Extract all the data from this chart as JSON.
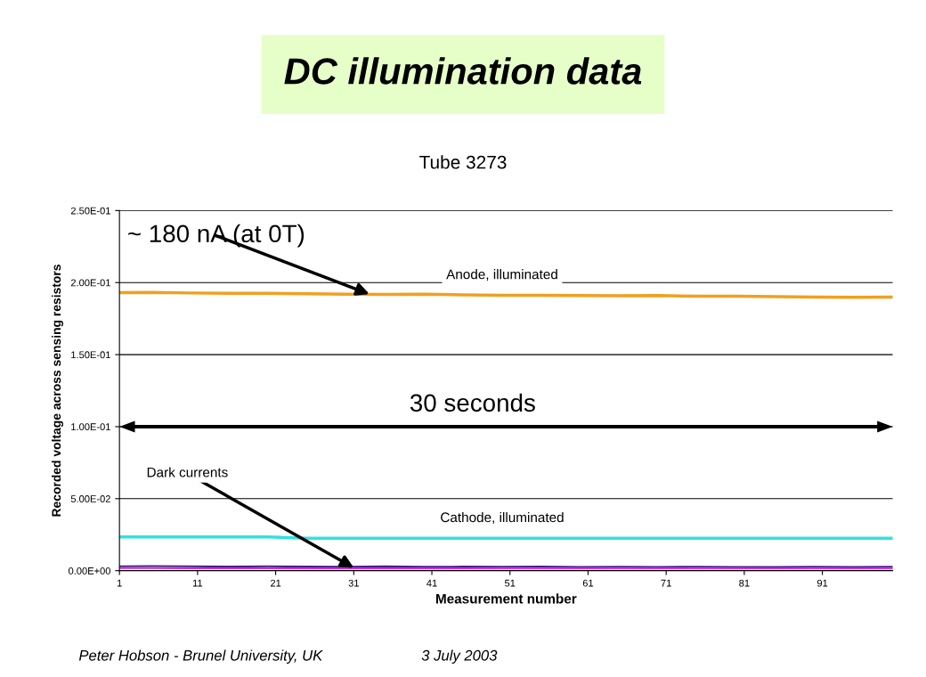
{
  "chart_data": {
    "type": "line",
    "title": "DC illumination data",
    "subtitle": "Tube 3273",
    "xlabel": "Measurement number",
    "ylabel": "Recorded voltage across sensing resistors",
    "x": [
      1,
      5,
      10,
      15,
      20,
      25,
      30,
      35,
      40,
      45,
      50,
      55,
      60,
      65,
      70,
      75,
      80,
      85,
      90,
      95,
      100
    ],
    "series": [
      {
        "name": "Anode, illuminated",
        "color": "#f0a020",
        "values": [
          0.193,
          0.1932,
          0.1928,
          0.1925,
          0.1925,
          0.1922,
          0.192,
          0.1918,
          0.192,
          0.1915,
          0.1912,
          0.1912,
          0.191,
          0.1908,
          0.191,
          0.1905,
          0.1905,
          0.1903,
          0.19,
          0.1898,
          0.19
        ]
      },
      {
        "name": "Cathode, illuminated",
        "color": "#33e0e0",
        "values": [
          0.0235,
          0.0235,
          0.0235,
          0.0235,
          0.0235,
          0.0225,
          0.0225,
          0.0225,
          0.0225,
          0.0225,
          0.0225,
          0.0225,
          0.0225,
          0.0225,
          0.0225,
          0.0225,
          0.0225,
          0.0225,
          0.0225,
          0.0225,
          0.0225
        ]
      },
      {
        "color": "#4b1a8c",
        "values": [
          0.003,
          0.0032,
          0.003,
          0.0028,
          0.003,
          0.0028,
          0.0027,
          0.003,
          0.0027,
          0.0028,
          0.0027,
          0.0028,
          0.0026,
          0.0027,
          0.0026,
          0.0027,
          0.0026,
          0.0025,
          0.0027,
          0.0025,
          0.0027
        ]
      },
      {
        "color": "#cc33cc",
        "values": [
          0.0018,
          0.0018,
          0.0017,
          0.0017,
          0.0017,
          0.0016,
          0.0016,
          0.0016,
          0.0016,
          0.0016,
          0.0015,
          0.0015,
          0.0015,
          0.0015,
          0.0015,
          0.0015,
          0.0015,
          0.0015,
          0.0015,
          0.0015,
          0.0015
        ]
      }
    ],
    "xlim": [
      1,
      100
    ],
    "xticks": [
      1,
      11,
      21,
      31,
      41,
      51,
      61,
      71,
      81,
      91
    ],
    "ylim": [
      0,
      0.25
    ],
    "yticks": [
      {
        "value": 0,
        "label": "0.00E+00"
      },
      {
        "value": 0.05,
        "label": "5.00E-02"
      },
      {
        "value": 0.1,
        "label": "1.00E-01"
      },
      {
        "value": 0.15,
        "label": "1.50E-01"
      },
      {
        "value": 0.2,
        "label": "2.00E-01"
      },
      {
        "value": 0.25,
        "label": "2.50E-01"
      }
    ],
    "grid": "y",
    "legend": false,
    "marker": "none",
    "line_style": "solid",
    "annotations": [
      {
        "text": "~ 180 nA (at 0T)",
        "x": 33,
        "y": 0.192
      },
      "30 seconds",
      {
        "text": "Dark currents",
        "x": 31,
        "y": 0.002
      },
      "Peter Hobson - Brunel University, UK",
      "3 July 2003"
    ]
  }
}
